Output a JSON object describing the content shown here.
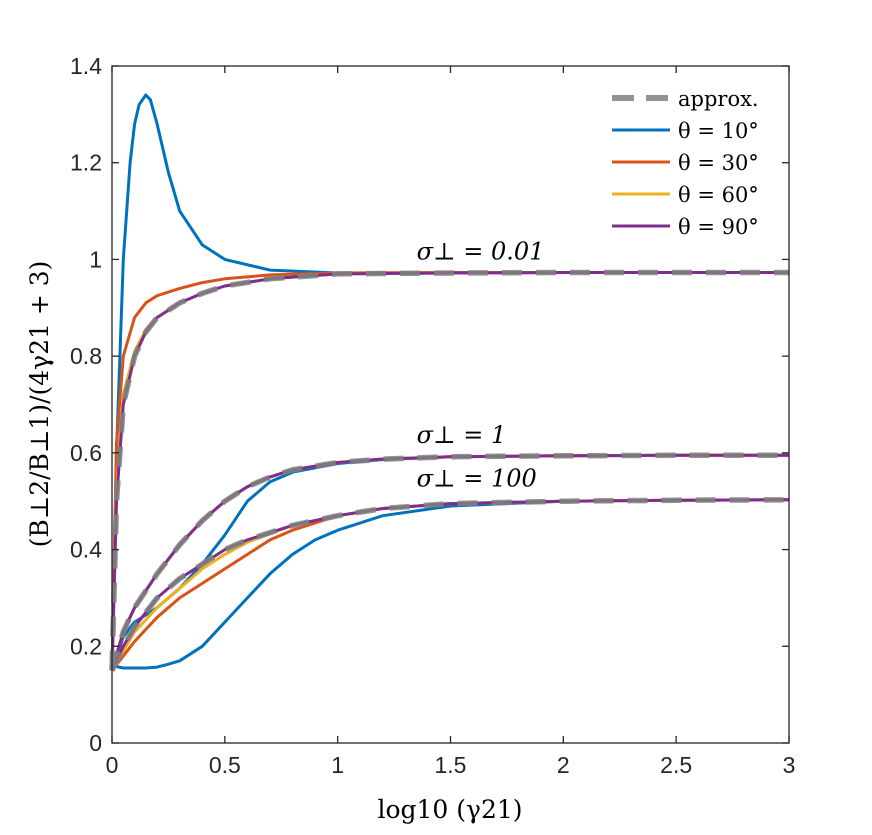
{
  "chart_data": {
    "type": "line",
    "xlabel": "log10 (γ21)",
    "ylabel": "(B⊥2/B⊥1)/(4γ21 + 3)",
    "xlim": [
      0,
      3
    ],
    "ylim": [
      0,
      1.4
    ],
    "x_ticks": [
      "0",
      "0.5",
      "1",
      "1.5",
      "2",
      "2.5",
      "3"
    ],
    "y_ticks": [
      "0",
      "0.2",
      "0.4",
      "0.6",
      "0.8",
      "1",
      "1.2",
      "1.4"
    ],
    "grid": false,
    "legend_position": "top-right",
    "legend": [
      {
        "label": "approx.",
        "color": "#808080",
        "style": "dashed"
      },
      {
        "label": "θ = 10°",
        "color": "#0072BD",
        "style": "solid"
      },
      {
        "label": "θ = 30°",
        "color": "#D95319",
        "style": "solid"
      },
      {
        "label": "θ = 60°",
        "color": "#EDB120",
        "style": "solid"
      },
      {
        "label": "θ = 90°",
        "color": "#7E2F8E",
        "style": "solid"
      }
    ],
    "annotations": [
      {
        "text": "σ⊥ = 0.01",
        "x": 1.35,
        "y": 1.0
      },
      {
        "text": "σ⊥ = 1",
        "x": 1.35,
        "y": 0.62
      },
      {
        "text": "σ⊥ = 100",
        "x": 1.35,
        "y": 0.53
      }
    ],
    "groups": [
      {
        "label": "σ⊥ = 0.01",
        "series": [
          {
            "name": "approx.",
            "color": "#808080",
            "dashed": true,
            "x": [
              0,
              0.02,
              0.05,
              0.1,
              0.15,
              0.2,
              0.3,
              0.4,
              0.5,
              0.7,
              1.0,
              1.5,
              2.0,
              3.0
            ],
            "y": [
              0.15,
              0.5,
              0.7,
              0.8,
              0.85,
              0.88,
              0.91,
              0.93,
              0.945,
              0.96,
              0.97,
              0.972,
              0.973,
              0.973
            ]
          },
          {
            "name": "θ = 10°",
            "color": "#0072BD",
            "x": [
              0,
              0.02,
              0.05,
              0.08,
              0.1,
              0.12,
              0.15,
              0.17,
              0.2,
              0.25,
              0.3,
              0.4,
              0.5,
              0.7,
              1.0,
              1.5,
              2.0,
              3.0
            ],
            "y": [
              0.15,
              0.6,
              1.0,
              1.2,
              1.28,
              1.32,
              1.34,
              1.33,
              1.28,
              1.18,
              1.1,
              1.03,
              1.0,
              0.978,
              0.972,
              0.972,
              0.973,
              0.973
            ]
          },
          {
            "name": "θ = 30°",
            "color": "#D95319",
            "x": [
              0,
              0.02,
              0.05,
              0.1,
              0.15,
              0.2,
              0.3,
              0.4,
              0.5,
              0.7,
              1.0,
              1.5,
              2.0,
              3.0
            ],
            "y": [
              0.15,
              0.62,
              0.8,
              0.88,
              0.91,
              0.925,
              0.94,
              0.952,
              0.96,
              0.968,
              0.972,
              0.973,
              0.973,
              0.973
            ]
          },
          {
            "name": "θ = 60°",
            "color": "#EDB120",
            "x": [
              0,
              0.02,
              0.05,
              0.1,
              0.15,
              0.2,
              0.3,
              0.4,
              0.5,
              0.7,
              1.0,
              1.5,
              2.0,
              3.0
            ],
            "y": [
              0.15,
              0.52,
              0.72,
              0.81,
              0.855,
              0.88,
              0.91,
              0.93,
              0.945,
              0.96,
              0.97,
              0.972,
              0.973,
              0.973
            ]
          },
          {
            "name": "θ = 90°",
            "color": "#7E2F8E",
            "x": [
              0,
              0.02,
              0.05,
              0.1,
              0.15,
              0.2,
              0.3,
              0.4,
              0.5,
              0.7,
              1.0,
              1.5,
              2.0,
              3.0
            ],
            "y": [
              0.15,
              0.5,
              0.7,
              0.8,
              0.85,
              0.88,
              0.91,
              0.93,
              0.945,
              0.96,
              0.97,
              0.972,
              0.973,
              0.973
            ]
          }
        ]
      },
      {
        "label": "σ⊥ = 1",
        "series": [
          {
            "name": "approx.",
            "color": "#808080",
            "dashed": true,
            "x": [
              0,
              0.05,
              0.1,
              0.2,
              0.3,
              0.4,
              0.5,
              0.6,
              0.7,
              0.8,
              1.0,
              1.2,
              1.5,
              2.0,
              2.5,
              3.0
            ],
            "y": [
              0.15,
              0.23,
              0.28,
              0.35,
              0.41,
              0.46,
              0.5,
              0.53,
              0.55,
              0.565,
              0.58,
              0.587,
              0.592,
              0.594,
              0.595,
              0.595
            ]
          },
          {
            "name": "θ = 10°",
            "color": "#0072BD",
            "x": [
              0,
              0.05,
              0.1,
              0.2,
              0.3,
              0.4,
              0.5,
              0.6,
              0.7,
              0.8,
              1.0,
              1.2,
              1.5,
              2.0,
              2.5,
              3.0
            ],
            "y": [
              0.15,
              0.22,
              0.25,
              0.28,
              0.32,
              0.37,
              0.43,
              0.5,
              0.54,
              0.56,
              0.578,
              0.586,
              0.592,
              0.594,
              0.595,
              0.595
            ]
          },
          {
            "name": "θ = 30°",
            "color": "#D95319",
            "x": [
              0,
              0.05,
              0.1,
              0.2,
              0.3,
              0.4,
              0.5,
              0.6,
              0.7,
              0.8,
              1.0,
              1.2,
              1.5,
              2.0,
              2.5,
              3.0
            ],
            "y": [
              0.15,
              0.23,
              0.28,
              0.35,
              0.41,
              0.46,
              0.5,
              0.53,
              0.55,
              0.565,
              0.58,
              0.587,
              0.592,
              0.594,
              0.595,
              0.595
            ]
          },
          {
            "name": "θ = 60°",
            "color": "#EDB120",
            "x": [
              0,
              0.05,
              0.1,
              0.2,
              0.3,
              0.4,
              0.5,
              0.6,
              0.7,
              0.8,
              1.0,
              1.2,
              1.5,
              2.0,
              2.5,
              3.0
            ],
            "y": [
              0.15,
              0.23,
              0.28,
              0.35,
              0.41,
              0.46,
              0.5,
              0.53,
              0.55,
              0.565,
              0.58,
              0.587,
              0.592,
              0.594,
              0.595,
              0.595
            ]
          },
          {
            "name": "θ = 90°",
            "color": "#7E2F8E",
            "x": [
              0,
              0.05,
              0.1,
              0.2,
              0.3,
              0.4,
              0.5,
              0.6,
              0.7,
              0.8,
              1.0,
              1.2,
              1.5,
              2.0,
              2.5,
              3.0
            ],
            "y": [
              0.15,
              0.23,
              0.28,
              0.35,
              0.41,
              0.46,
              0.5,
              0.53,
              0.55,
              0.565,
              0.58,
              0.587,
              0.592,
              0.594,
              0.595,
              0.595
            ]
          }
        ]
      },
      {
        "label": "σ⊥ = 100",
        "series": [
          {
            "name": "approx.",
            "color": "#808080",
            "dashed": true,
            "x": [
              0,
              0.05,
              0.1,
              0.2,
              0.3,
              0.4,
              0.5,
              0.6,
              0.8,
              1.0,
              1.2,
              1.5,
              2.0,
              2.5,
              3.0
            ],
            "y": [
              0.15,
              0.2,
              0.24,
              0.3,
              0.34,
              0.37,
              0.4,
              0.42,
              0.45,
              0.47,
              0.485,
              0.495,
              0.5,
              0.502,
              0.503
            ]
          },
          {
            "name": "θ = 10°",
            "color": "#0072BD",
            "x": [
              0,
              0.05,
              0.1,
              0.15,
              0.2,
              0.25,
              0.3,
              0.4,
              0.5,
              0.6,
              0.7,
              0.8,
              0.9,
              1.0,
              1.2,
              1.5,
              2.0,
              2.5,
              3.0
            ],
            "y": [
              0.16,
              0.155,
              0.155,
              0.155,
              0.157,
              0.163,
              0.17,
              0.2,
              0.25,
              0.3,
              0.35,
              0.39,
              0.42,
              0.44,
              0.47,
              0.49,
              0.5,
              0.502,
              0.503
            ]
          },
          {
            "name": "θ = 30°",
            "color": "#D95319",
            "x": [
              0,
              0.05,
              0.1,
              0.2,
              0.3,
              0.4,
              0.5,
              0.6,
              0.7,
              0.8,
              1.0,
              1.2,
              1.5,
              2.0,
              2.5,
              3.0
            ],
            "y": [
              0.15,
              0.18,
              0.21,
              0.26,
              0.3,
              0.33,
              0.36,
              0.39,
              0.42,
              0.44,
              0.47,
              0.485,
              0.495,
              0.5,
              0.502,
              0.503
            ]
          },
          {
            "name": "θ = 60°",
            "color": "#EDB120",
            "x": [
              0,
              0.05,
              0.1,
              0.2,
              0.3,
              0.4,
              0.5,
              0.6,
              0.8,
              1.0,
              1.2,
              1.5,
              2.0,
              2.5,
              3.0
            ],
            "y": [
              0.15,
              0.19,
              0.23,
              0.28,
              0.32,
              0.36,
              0.39,
              0.415,
              0.45,
              0.47,
              0.485,
              0.495,
              0.5,
              0.502,
              0.503
            ]
          },
          {
            "name": "θ = 90°",
            "color": "#7E2F8E",
            "x": [
              0,
              0.05,
              0.1,
              0.2,
              0.3,
              0.4,
              0.5,
              0.6,
              0.8,
              1.0,
              1.2,
              1.5,
              2.0,
              2.5,
              3.0
            ],
            "y": [
              0.15,
              0.2,
              0.24,
              0.3,
              0.34,
              0.37,
              0.4,
              0.42,
              0.45,
              0.47,
              0.485,
              0.495,
              0.5,
              0.502,
              0.503
            ]
          }
        ]
      }
    ]
  }
}
